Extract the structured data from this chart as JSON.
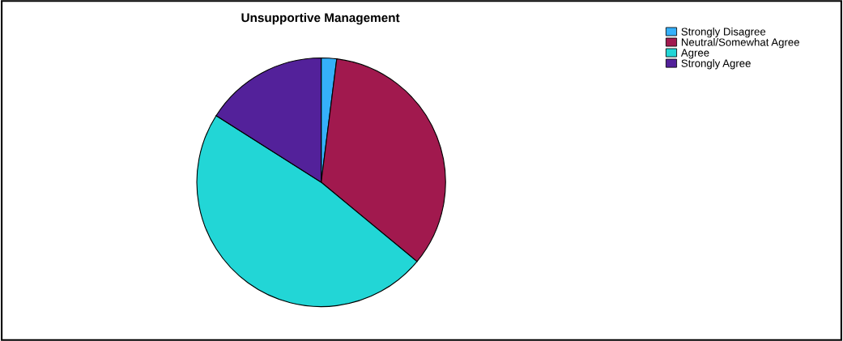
{
  "chart_data": {
    "type": "pie",
    "title": "Unsupportive Management",
    "categories": [
      "Strongly Disagree",
      "Neutral/Somewhat Agree",
      "Agree",
      "Strongly Agree"
    ],
    "values": [
      2,
      34,
      48,
      16
    ],
    "colors": [
      "#35b0fa",
      "#a1194e",
      "#22d6d6",
      "#53219a"
    ],
    "legend": "top right"
  }
}
